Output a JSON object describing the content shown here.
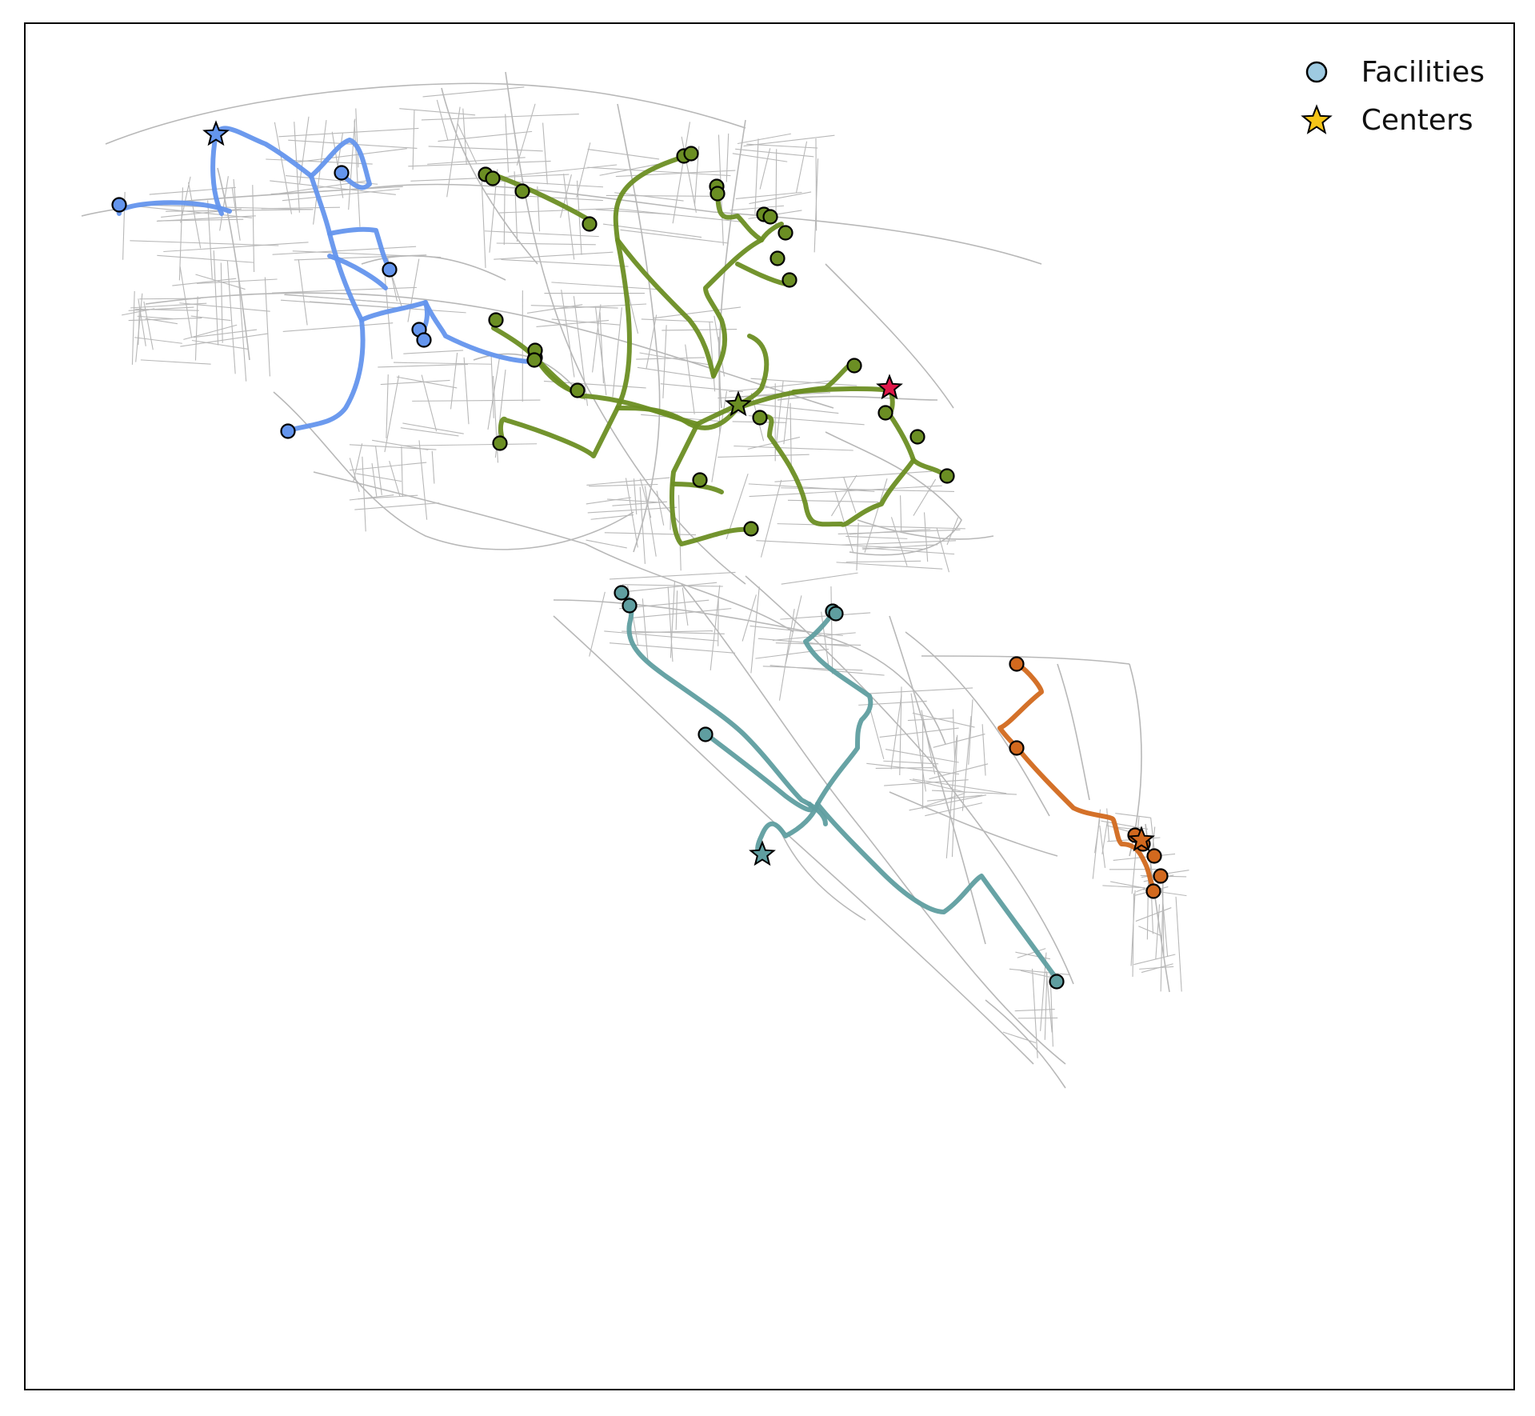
{
  "legend": {
    "facilities_label": "Facilities",
    "centers_label": "Centers",
    "facilities_icon": "circle-marker-icon",
    "centers_icon": "star-marker-icon",
    "facilities_color": "#9ecae1",
    "centers_color": "#f5c518"
  },
  "colors": {
    "road": "#b8b8b8",
    "blue": "#6495ed",
    "green": "#6b8e23",
    "teal": "#5f9ea0",
    "orange": "#d2691e",
    "highlight_star": "#e0184a",
    "frame": "#000000"
  }
}
